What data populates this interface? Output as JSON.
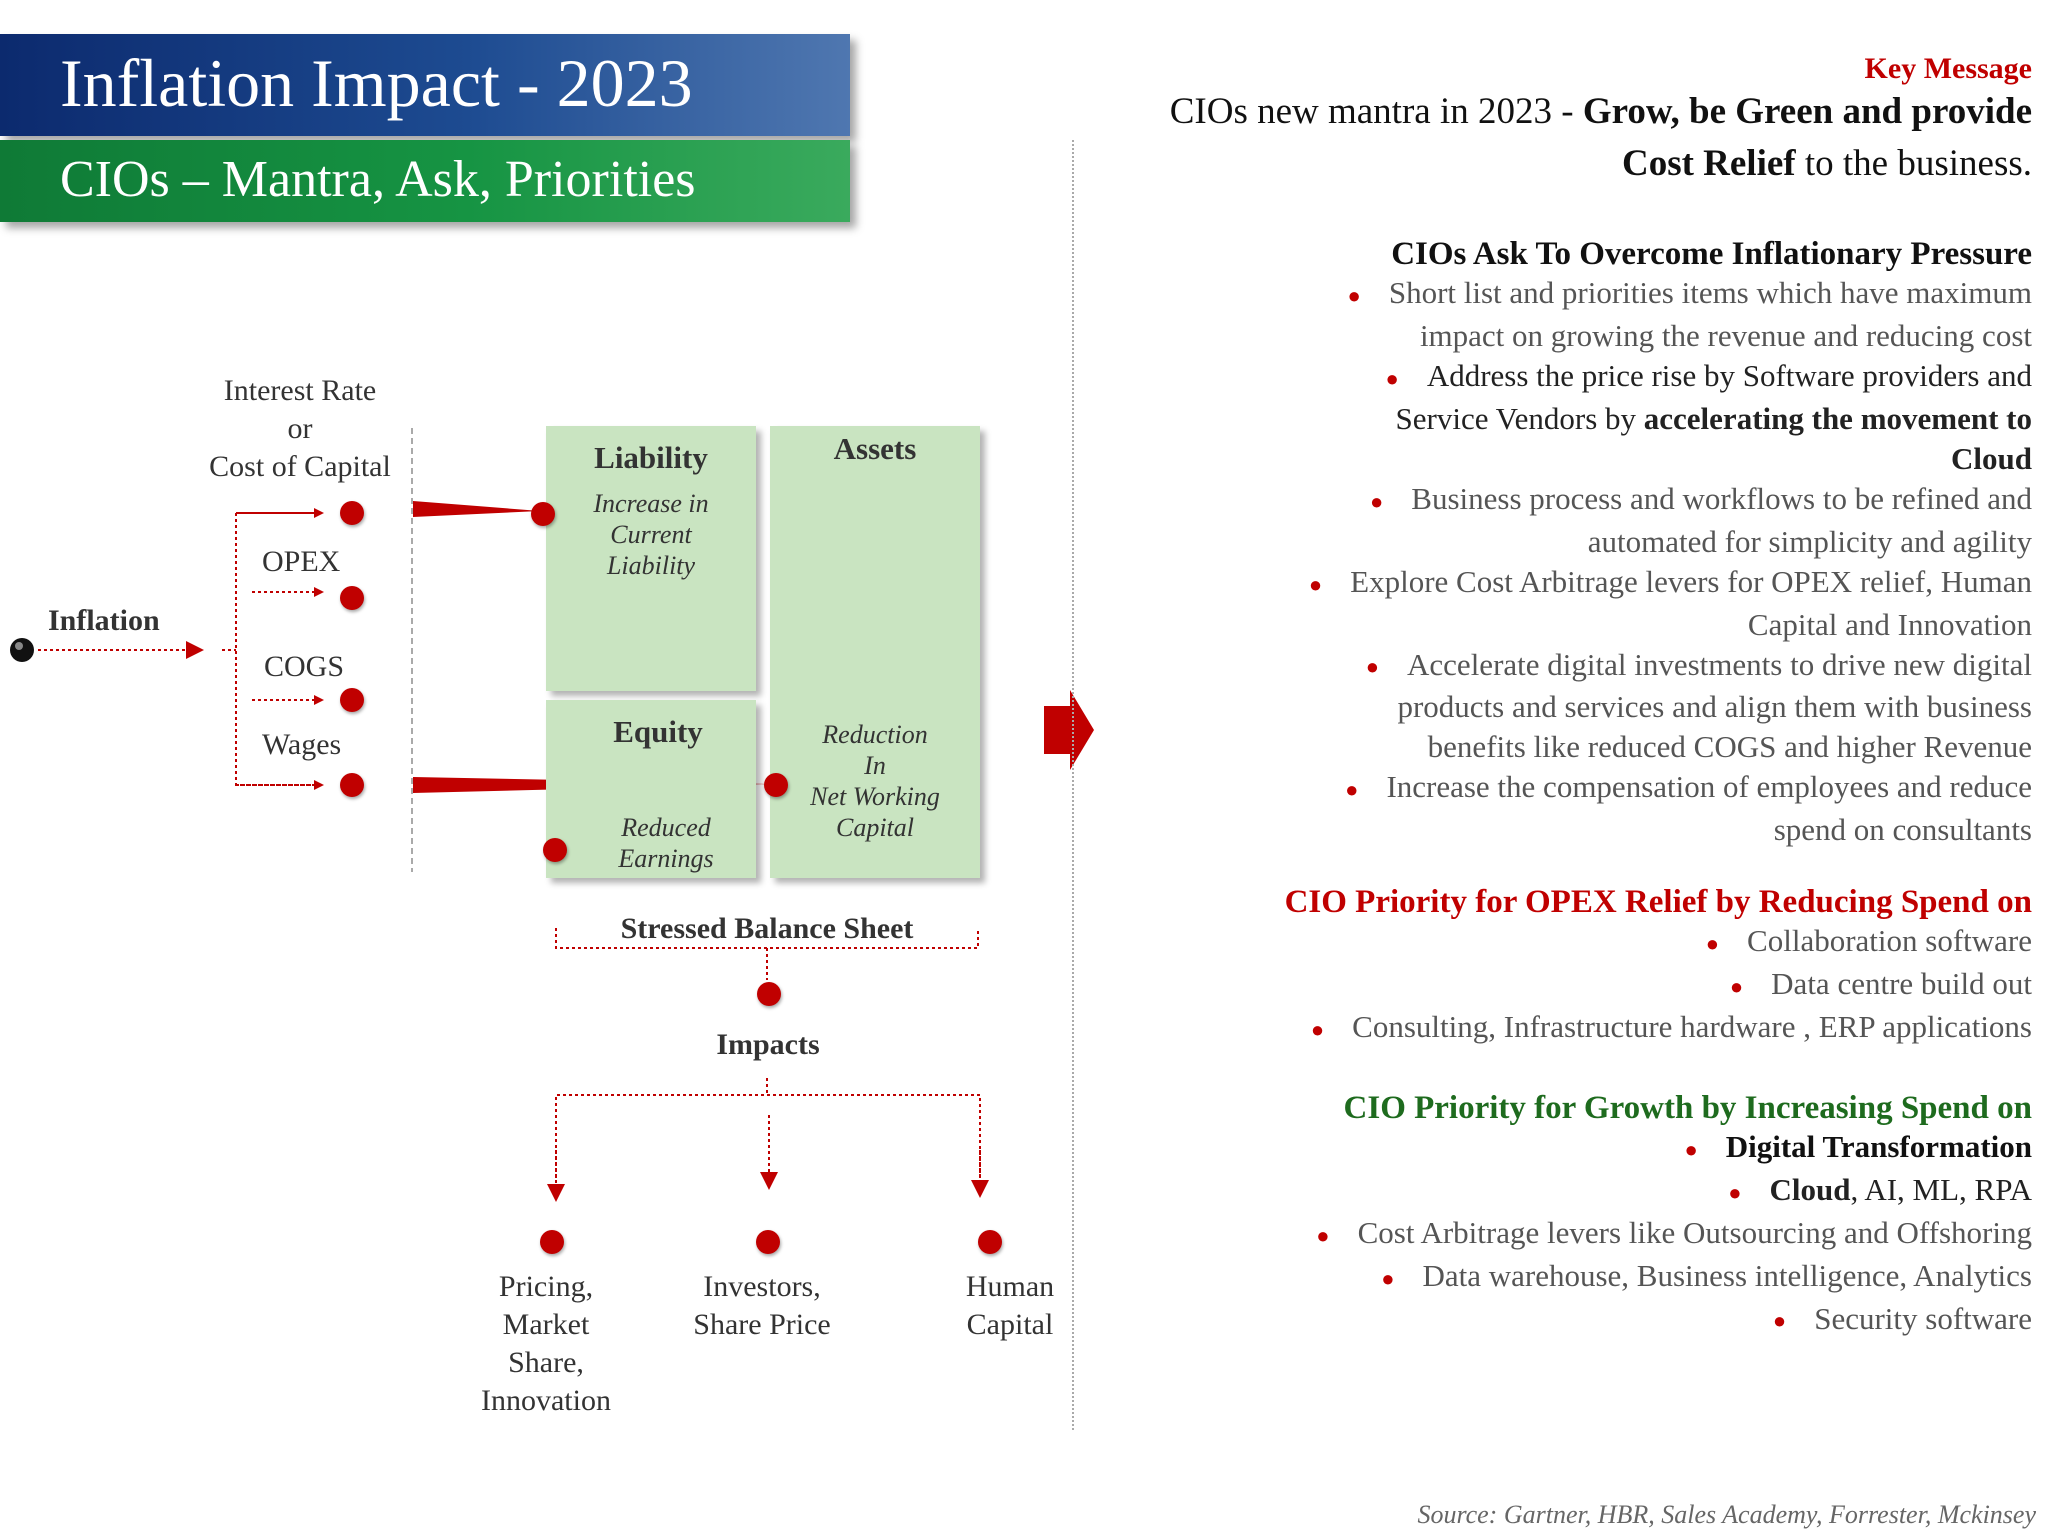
{
  "header": {
    "title": "Inflation Impact - 2023",
    "subtitle": "CIOs – Mantra, Ask, Priorities"
  },
  "diagram": {
    "interest_rate": [
      "Interest Rate",
      "or",
      "Cost of Capital"
    ],
    "inflation": "Inflation",
    "opex": "OPEX",
    "cogs": "COGS",
    "wages": "Wages",
    "liability": {
      "title": "Liability",
      "text": [
        "Increase in",
        "Current",
        "Liability"
      ]
    },
    "assets": {
      "title": "Assets",
      "text": [
        "Reduction",
        "In",
        "Net Working",
        "Capital"
      ]
    },
    "equity": {
      "title": "Equity",
      "text": [
        "Reduced",
        "Earnings"
      ]
    },
    "balance_sheet": "Stressed Balance Sheet",
    "impacts": "Impacts",
    "outcomes": [
      [
        "Pricing,",
        "Market",
        "Share,",
        "Innovation"
      ],
      [
        "Investors,",
        "Share Price"
      ],
      [
        "Human",
        "Capital"
      ]
    ]
  },
  "key_message": {
    "label": "Key Message",
    "line1_plain": "CIOs new mantra in 2023 - ",
    "line1_bold": "Grow, be Green and provide",
    "line2_bold": "Cost Relief",
    "line2_plain": " to the business."
  },
  "ask": {
    "heading": "CIOs Ask To Overcome Inflationary Pressure",
    "items": [
      [
        "Short list and priorities items which have maximum",
        "impact on growing the revenue and reducing cost"
      ],
      [
        "Address the price rise by Software providers and",
        "Service Vendors by ",
        "accelerating the movement to",
        "Cloud"
      ],
      [
        "Business process and workflows to be refined and",
        "automated for simplicity and agility"
      ],
      [
        "Explore Cost Arbitrage levers for OPEX relief, Human",
        "Capital and Innovation"
      ],
      [
        "Accelerate digital investments to drive new digital",
        "products and services and align them  with business",
        "benefits like reduced COGS and higher Revenue"
      ],
      [
        "Increase the compensation of employees and reduce",
        "spend on consultants"
      ]
    ]
  },
  "opex": {
    "heading": "CIO Priority for OPEX Relief by Reducing Spend on",
    "heading_color": "#c00000",
    "items": [
      "Collaboration software",
      "Data centre build out",
      "Consulting,  Infrastructure hardware , ERP applications"
    ]
  },
  "growth": {
    "heading": "CIO Priority for Growth by Increasing Spend on",
    "heading_color": "#1e6b1e",
    "item1": "Digital Transformation",
    "item2_bold": "Cloud",
    "item2_rest": ", AI, ML, RPA",
    "items": [
      "Cost Arbitrage levers like Outsourcing and Offshoring",
      "Data warehouse, Business intelligence, Analytics",
      "Security software"
    ]
  },
  "source": "Source: Gartner, HBR, Sales Academy, Forrester, Mckinsey",
  "colors": {
    "accent_red": "#c00000",
    "box_green": "#c9e4c1",
    "title_blue": "#0c2a6e",
    "subtitle_green": "#169443"
  }
}
